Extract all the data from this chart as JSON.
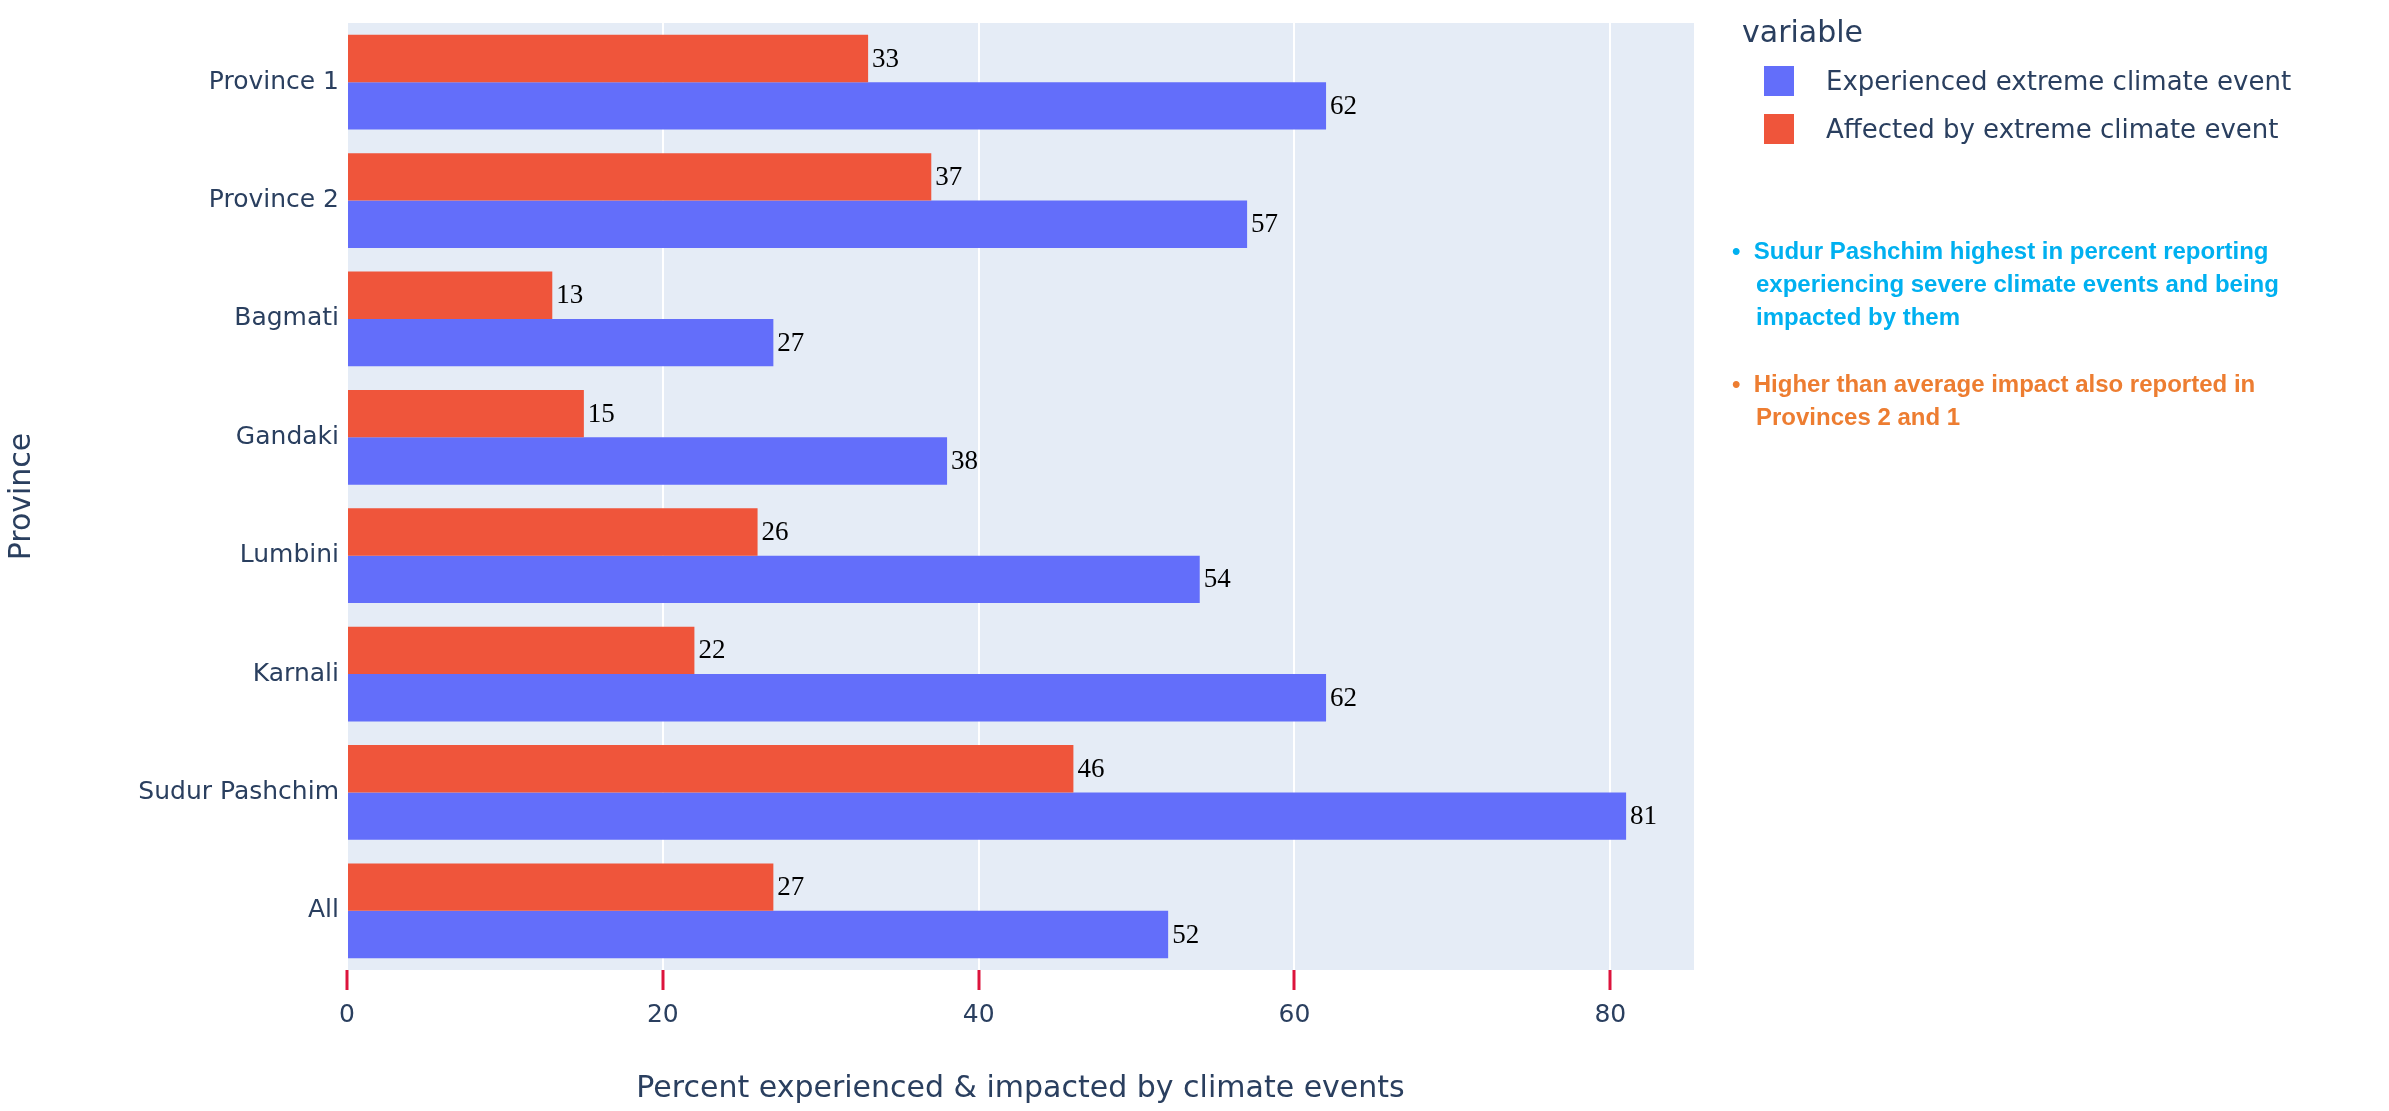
{
  "chart_data": {
    "type": "bar",
    "orientation": "horizontal",
    "xlabel": "Percent experienced & impacted by climate events",
    "ylabel": "Province",
    "legend_title": "variable",
    "legend": "top right",
    "categories": [
      "Province 1",
      "Province 2",
      "Bagmati",
      "Gandaki",
      "Lumbini",
      "Karnali",
      "Sudur Pashchim",
      "All"
    ],
    "series": [
      {
        "name": "Experienced extreme climate event",
        "color": "#636efa",
        "values": [
          62,
          57,
          27,
          38,
          54,
          62,
          81,
          52
        ]
      },
      {
        "name": "Affected by extreme climate event",
        "color": "#ef553b",
        "values": [
          33,
          37,
          13,
          15,
          26,
          22,
          46,
          27
        ]
      }
    ],
    "xlim": [
      0,
      85.3
    ],
    "xticks": [
      0,
      20,
      40,
      60,
      80
    ],
    "grid": "x",
    "data_labels": true,
    "annotations": [
      "•  Sudur Pashchim highest in percent reporting experiencing severe climate events and being impacted by them",
      "•  Higher than average impact also reported in Provinces 2 and 1"
    ]
  }
}
